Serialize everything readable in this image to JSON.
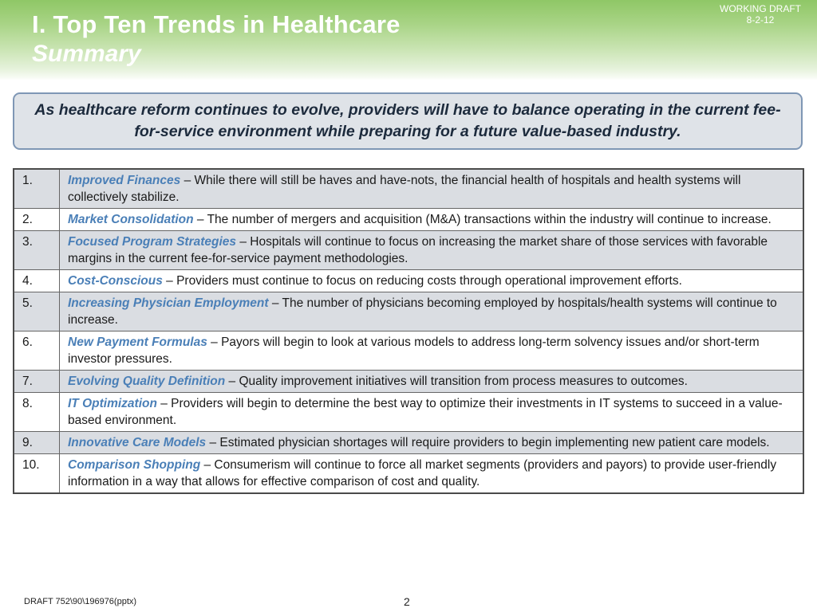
{
  "header": {
    "title": "I.  Top Ten Trends in Healthcare",
    "subtitle": "Summary",
    "draft_label": "WORKING DRAFT",
    "draft_date": "8-2-12"
  },
  "callout": "As healthcare reform continues to evolve, providers will have to balance operating in the current fee-for-service environment while preparing for a future value-based industry.",
  "trends": [
    {
      "num": "1.",
      "name": "Improved Finances",
      "desc": " – While there will still be haves and have-nots, the financial health of hospitals and health systems will collectively stabilize."
    },
    {
      "num": "2.",
      "name": "Market Consolidation",
      "desc": " – The number of mergers and acquisition (M&A) transactions within the industry will continue to increase."
    },
    {
      "num": "3.",
      "name": "Focused Program Strategies",
      "desc": " – Hospitals will continue to focus on increasing the market share of those services with favorable margins in the current fee-for-service payment methodologies."
    },
    {
      "num": "4.",
      "name": "Cost-Conscious",
      "desc": " – Providers must continue to focus on reducing costs through operational improvement efforts."
    },
    {
      "num": "5.",
      "name": "Increasing Physician Employment",
      "desc": " – The number of physicians becoming employed by hospitals/health systems will continue to increase."
    },
    {
      "num": "6.",
      "name": "New Payment Formulas",
      "desc": " – Payors will begin to look at various models to address long-term solvency issues and/or short-term investor pressures."
    },
    {
      "num": "7.",
      "name": "Evolving Quality Definition",
      "desc": " – Quality improvement initiatives will transition from process measures to outcomes."
    },
    {
      "num": "8.",
      "name": "IT Optimization",
      "desc": " – Providers will begin to determine the best way to optimize their investments in IT systems to succeed in a value-based environment."
    },
    {
      "num": "9.",
      "name": "Innovative Care Models",
      "desc": " – Estimated physician shortages will require providers to begin implementing new patient care models."
    },
    {
      "num": "10.",
      "name": "Comparison Shopping",
      "desc": " – Consumerism will continue to force all market segments (providers and payors) to provide user-friendly information in a way that allows for effective comparison of cost and quality."
    }
  ],
  "footer": {
    "doc_id": "DRAFT 752\\90\\196976(pptx)",
    "page_number": "2"
  },
  "colors": {
    "header_green": "#8fc766",
    "trend_name_blue": "#4a7fb7",
    "row_shade": "#dadde2",
    "callout_border": "#7f97b5"
  }
}
